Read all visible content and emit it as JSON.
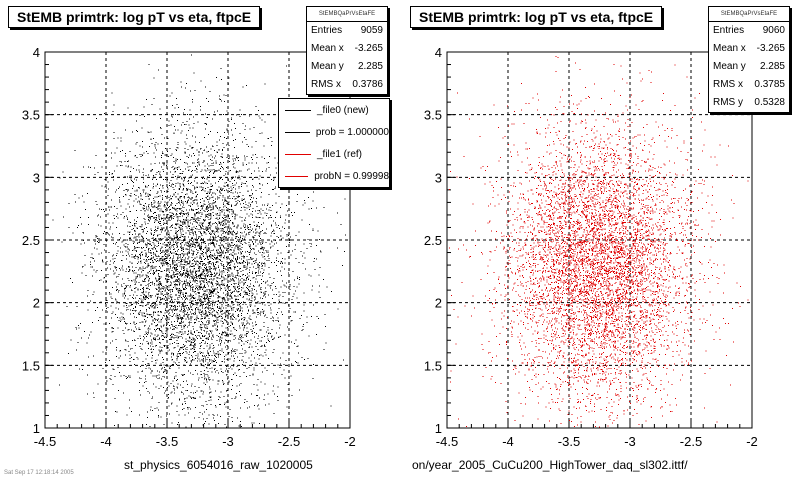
{
  "chart_data": [
    {
      "type": "scatter",
      "title": "StEMB primtrk: log pT vs eta, ftpcE",
      "xlabel": "st_physics_6054016_raw_1020005",
      "ylabel": "",
      "xlim": [
        -4.5,
        -2
      ],
      "ylim": [
        1,
        4
      ],
      "xticks": [
        "-4.5",
        "-4",
        "-3.5",
        "-3",
        "-2.5",
        "-2"
      ],
      "yticks": [
        "1",
        "1.5",
        "2",
        "2.5",
        "3",
        "3.5",
        "4"
      ],
      "grid": true,
      "marker_color": "#000000",
      "stats": {
        "name": "StEMBQaPrVsEtaFE",
        "rows": [
          {
            "label": "Entries",
            "value": "9059"
          },
          {
            "label": "Mean x",
            "value": "-3.265"
          },
          {
            "label": "Mean y",
            "value": "2.285"
          },
          {
            "label": "RMS x",
            "value": "0.3786"
          }
        ]
      },
      "legend": {
        "placement": "top-right",
        "entries": [
          {
            "label": "_file0 (new)",
            "color": "#000000"
          },
          {
            "label": "prob = 1.000000",
            "color": "#000000"
          },
          {
            "label": "_file1 (ref)",
            "color": "#e00000"
          },
          {
            "label": "probN = 0.99998",
            "color": "#e00000"
          }
        ]
      },
      "distribution": {
        "mean_x": -3.265,
        "rms_x": 0.3786,
        "mean_y": 2.285,
        "rms_y": 0.5328,
        "points_drawn": 6500
      }
    },
    {
      "type": "scatter",
      "title": "StEMB primtrk: log pT vs eta, ftpcE",
      "xlabel": "on/year_2005_CuCu200_HighTower_daq_sl302.ittf/",
      "ylabel": "",
      "xlim": [
        -4.5,
        -2
      ],
      "ylim": [
        1,
        4
      ],
      "xticks": [
        "-4.5",
        "-4",
        "-3.5",
        "-3",
        "-2.5",
        "-2"
      ],
      "yticks": [
        "1",
        "1.5",
        "2",
        "2.5",
        "3",
        "3.5",
        "4"
      ],
      "grid": true,
      "marker_color": "#e00000",
      "stats": {
        "name": "StEMBQaPrVsEtaFE",
        "rows": [
          {
            "label": "Entries",
            "value": "9060"
          },
          {
            "label": "Mean x",
            "value": "-3.265"
          },
          {
            "label": "Mean y",
            "value": "2.285"
          },
          {
            "label": "RMS x",
            "value": "0.3785"
          },
          {
            "label": "RMS y",
            "value": "0.5328"
          }
        ]
      },
      "distribution": {
        "mean_x": -3.265,
        "rms_x": 0.3785,
        "mean_y": 2.285,
        "rms_y": 0.5328,
        "points_drawn": 6500
      }
    }
  ],
  "footer": {
    "text": "Sat Sep 17 12:18:14 2005"
  }
}
